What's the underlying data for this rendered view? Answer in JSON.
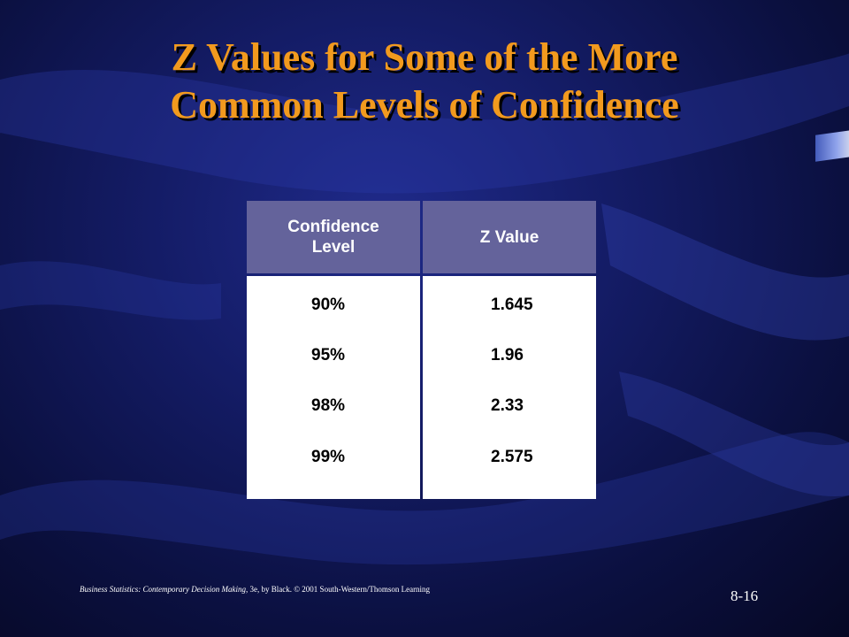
{
  "title": {
    "line1": "Z Values for Some of the More",
    "line2": "Common Levels of Confidence"
  },
  "table": {
    "headers": [
      "Confidence Level",
      "Z Value"
    ],
    "header_line1": "Confidence",
    "header_line2": "Level",
    "header_z": "Z Value",
    "rows": [
      {
        "level": "90%",
        "z": "1.645"
      },
      {
        "level": "95%",
        "z": "1.96"
      },
      {
        "level": "98%",
        "z": "2.33"
      },
      {
        "level": "99%",
        "z": "2.575"
      }
    ]
  },
  "footer": {
    "book_title": "Business Statistics: Contemporary Decision Making",
    "rest": ", 3e, by Black. © 2001 South-Western/Thomson Learning"
  },
  "page_number": "8-16",
  "colors": {
    "title": "#f29a1e",
    "header_bg": "#64639b",
    "background": "#141c66"
  }
}
